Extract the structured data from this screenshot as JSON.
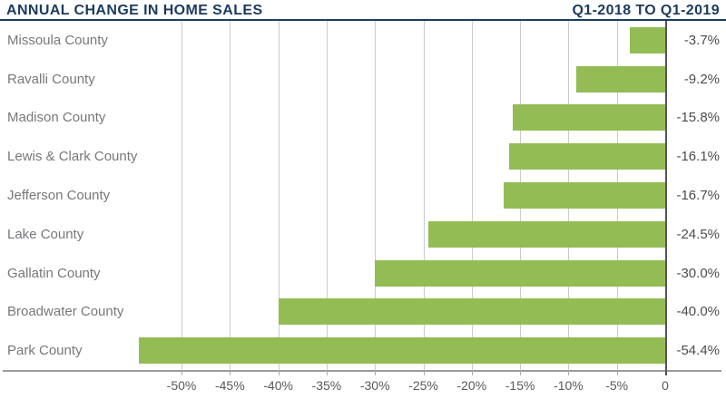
{
  "header": {
    "title": "ANNUAL CHANGE IN HOME SALES",
    "period": "Q1-2018 TO Q1-2019"
  },
  "colors": {
    "navy": "#1b3b5f",
    "bar_green": "#94bc55",
    "gridline_gray": "#cacbcd",
    "zero_axis_gray": "#55565a",
    "bottom_axis_gray": "#9b9c9e",
    "category_label_gray": "#77787b",
    "value_label_gray": "#4b4c4e",
    "tick_label_gray": "#58595b",
    "background": "#ffffff"
  },
  "chart_data": {
    "type": "bar",
    "orientation": "horizontal",
    "title": "ANNUAL CHANGE IN HOME SALES",
    "subtitle": "Q1-2018 TO Q1-2019",
    "xlabel": "",
    "ylabel": "",
    "categories": [
      "Missoula County",
      "Ravalli County",
      "Madison County",
      "Lewis & Clark County",
      "Jefferson County",
      "Lake County",
      "Gallatin County",
      "Broadwater County",
      "Park County"
    ],
    "values": [
      -3.7,
      -9.2,
      -15.8,
      -16.1,
      -16.7,
      -24.5,
      -30.0,
      -40.0,
      -54.4
    ],
    "value_labels": [
      "-3.7%",
      "-9.2%",
      "-15.8%",
      "-16.1%",
      "-16.7%",
      "-24.5%",
      "-30.0%",
      "-40.0%",
      "-54.4%"
    ],
    "x_ticks": [
      {
        "value": -50,
        "label": "-50%"
      },
      {
        "value": -45,
        "label": "-45%"
      },
      {
        "value": -40,
        "label": "-40%"
      },
      {
        "value": -35,
        "label": "-35%"
      },
      {
        "value": -30,
        "label": "-30%"
      },
      {
        "value": -25,
        "label": "-25%"
      },
      {
        "value": -20,
        "label": "-20%"
      },
      {
        "value": -15,
        "label": "-15%"
      },
      {
        "value": -10,
        "label": "-10%"
      },
      {
        "value": -5,
        "label": "-5%"
      },
      {
        "value": 0,
        "label": "0"
      }
    ],
    "xlim": [
      -55.2,
      0
    ],
    "grid": true,
    "legend": "none",
    "bar_color": "#94bc55"
  }
}
